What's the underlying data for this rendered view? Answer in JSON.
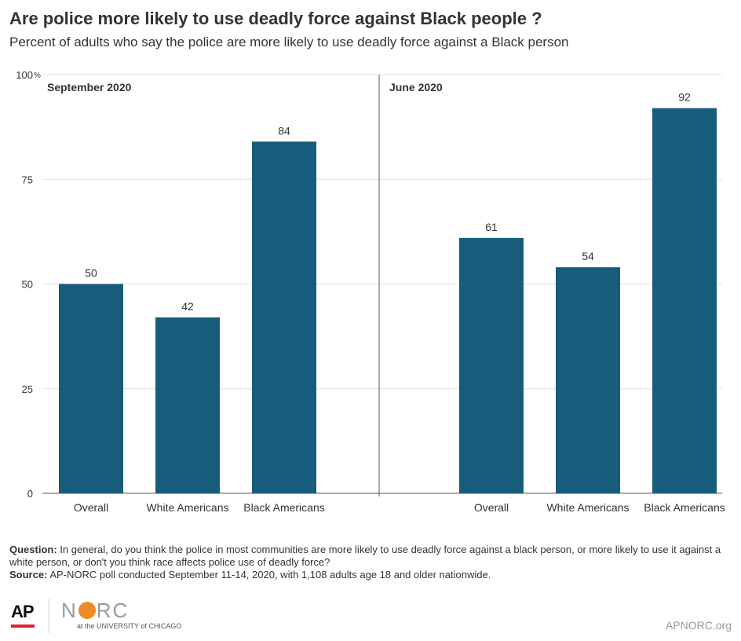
{
  "header": {
    "title": "Are police more likely to use deadly force against Black people ?",
    "subtitle": "Percent of adults who say the police are more likely to use deadly force against a Black person"
  },
  "chart_data": {
    "type": "bar",
    "title": "Are police more likely to use deadly force against Black people ?",
    "subtitle": "Percent of adults who say the police are more likely to use deadly force against a Black person",
    "ylim": [
      0,
      100
    ],
    "yticks": [
      "0",
      "25",
      "50",
      "75",
      "100"
    ],
    "y_unit": "%",
    "grid": true,
    "bar_color": "#175c7c",
    "panels": [
      {
        "name": "September 2020",
        "categories": [
          "Overall",
          "White Americans",
          "Black Americans"
        ],
        "values": [
          50,
          42,
          84
        ]
      },
      {
        "name": "June 2020",
        "categories": [
          "Overall",
          "White Americans",
          "Black Americans"
        ],
        "values": [
          61,
          54,
          92
        ]
      }
    ]
  },
  "footnote": {
    "question_label": "Question:",
    "question_text": "In general, do you think the police in most communities are more likely  to use deadly force against a black person, or more likely  to use it against a white person, or don't you think race affects police use of deadly force?",
    "source_label": "Source:",
    "source_text": "AP-NORC poll conducted September 11-14, 2020, with 1,108 adults age 18 and older nationwide."
  },
  "footer": {
    "logo_ap": "AP",
    "logo_norc_n": "N",
    "logo_norc_rest": "RC",
    "logo_norc_sub": "at the UNIVERSITY of CHICAGO",
    "site": "APNORC.org"
  }
}
